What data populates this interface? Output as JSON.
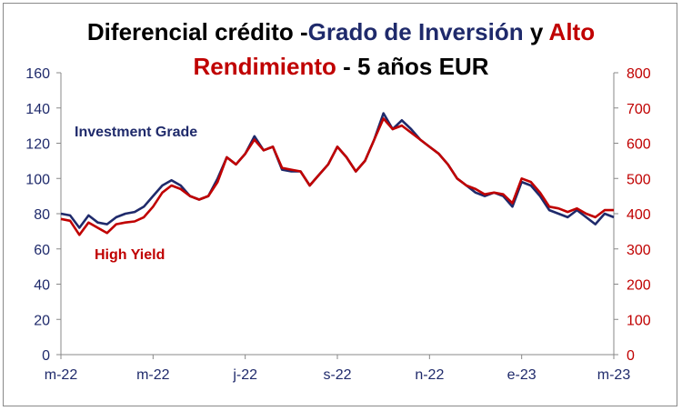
{
  "title": {
    "part1": "Diferencial crédito -",
    "part2": "Grado de Inversión",
    "part3": " y ",
    "part4": "Alto",
    "part5": "Rendimiento",
    "part6": " - 5 años EUR"
  },
  "colors": {
    "investment_grade": "#1f2a6b",
    "high_yield": "#c00000",
    "axis": "#888888",
    "left_axis_text": "#1f2a6b",
    "right_axis_text": "#c00000"
  },
  "chart_data": {
    "type": "line",
    "title": "Diferencial crédito -Grado de Inversión y Alto Rendimiento - 5 años EUR",
    "grid": false,
    "y_left": {
      "ylim": [
        0,
        160
      ],
      "ticks": [
        "0",
        "20",
        "40",
        "60",
        "80",
        "100",
        "120",
        "140",
        "160"
      ]
    },
    "y_right": {
      "ylim": [
        0,
        800
      ],
      "ticks": [
        "0",
        "100",
        "200",
        "300",
        "400",
        "500",
        "600",
        "700",
        "800"
      ]
    },
    "x_tick_labels": [
      "m-22",
      "m-22",
      "j-22",
      "s-22",
      "n-22",
      "e-23",
      "m-23"
    ],
    "x_index_range": [
      0,
      60
    ],
    "series": [
      {
        "name": "Investment Grade",
        "axis": "left",
        "x": [
          0,
          1,
          2,
          3,
          4,
          5,
          6,
          7,
          8,
          9,
          10,
          11,
          12,
          13,
          14,
          15,
          16,
          17,
          18,
          19,
          20,
          21,
          22,
          23,
          24,
          25,
          26,
          27,
          28,
          29,
          30,
          31,
          32,
          33,
          34,
          35,
          36,
          37,
          38,
          39,
          40,
          41,
          42,
          43,
          44,
          45,
          46,
          47,
          48,
          49,
          50,
          51,
          52,
          53,
          54,
          55,
          56,
          57,
          58,
          59,
          60
        ],
        "values": [
          80,
          79,
          72,
          79,
          75,
          74,
          78,
          80,
          81,
          84,
          90,
          96,
          99,
          96,
          90,
          88,
          90,
          100,
          112,
          108,
          114,
          124,
          116,
          118,
          105,
          104,
          104,
          96,
          102,
          108,
          118,
          112,
          104,
          110,
          122,
          137,
          128,
          133,
          128,
          122,
          118,
          114,
          108,
          100,
          96,
          92,
          90,
          92,
          90,
          84,
          98,
          96,
          90,
          82,
          80,
          78,
          82,
          78,
          74,
          80,
          78
        ],
        "ylim": [
          0,
          160
        ]
      },
      {
        "name": "High Yield",
        "axis": "right",
        "x": [
          0,
          1,
          2,
          3,
          4,
          5,
          6,
          7,
          8,
          9,
          10,
          11,
          12,
          13,
          14,
          15,
          16,
          17,
          18,
          19,
          20,
          21,
          22,
          23,
          24,
          25,
          26,
          27,
          28,
          29,
          30,
          31,
          32,
          33,
          34,
          35,
          36,
          37,
          38,
          39,
          40,
          41,
          42,
          43,
          44,
          45,
          46,
          47,
          48,
          49,
          50,
          51,
          52,
          53,
          54,
          55,
          56,
          57,
          58,
          59,
          60
        ],
        "values": [
          385,
          380,
          340,
          375,
          360,
          345,
          370,
          375,
          378,
          390,
          420,
          460,
          480,
          470,
          450,
          440,
          450,
          490,
          560,
          540,
          570,
          610,
          580,
          590,
          530,
          525,
          520,
          480,
          510,
          540,
          590,
          560,
          520,
          550,
          610,
          670,
          640,
          650,
          630,
          610,
          590,
          570,
          540,
          500,
          480,
          470,
          455,
          460,
          455,
          430,
          500,
          490,
          460,
          420,
          415,
          405,
          415,
          400,
          390,
          410,
          410
        ],
        "ylim": [
          0,
          800
        ]
      }
    ],
    "annotations": [
      {
        "text": "Investment Grade"
      },
      {
        "text": "High Yield"
      }
    ]
  }
}
